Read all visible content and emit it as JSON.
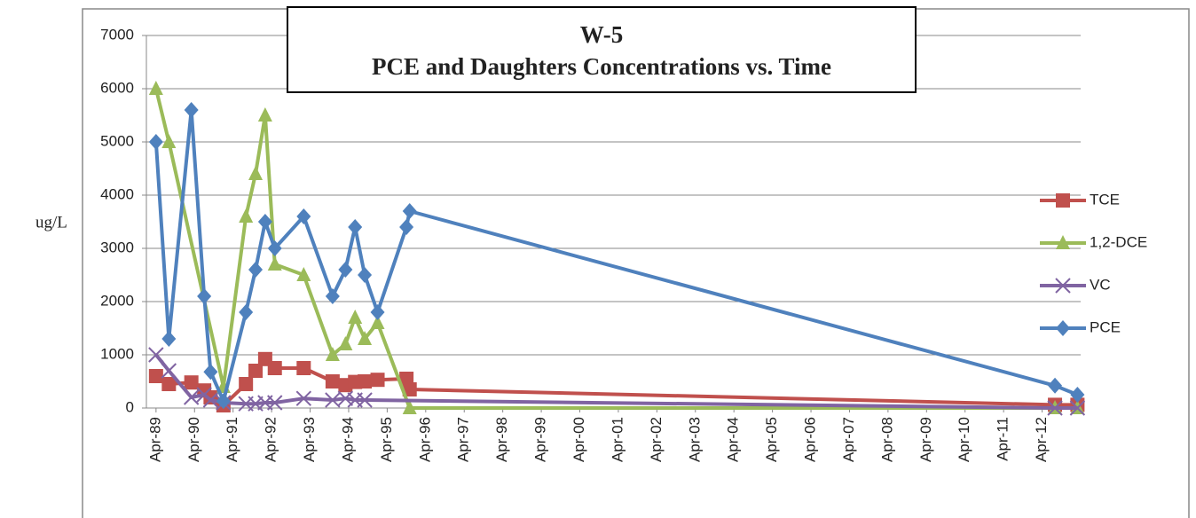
{
  "chart_data": {
    "type": "line",
    "title": "W-5",
    "subtitle": "PCE and Daughters Concentrations vs. Time",
    "y_label": "ug/L",
    "xlim": [
      "1989-01",
      "2013-04"
    ],
    "xticks": [
      {
        "value": "1989-04",
        "label": "Apr-89"
      },
      {
        "value": "1990-04",
        "label": "Apr-90"
      },
      {
        "value": "1991-04",
        "label": "Apr-91"
      },
      {
        "value": "1992-04",
        "label": "Apr-92"
      },
      {
        "value": "1993-04",
        "label": "Apr-93"
      },
      {
        "value": "1994-04",
        "label": "Apr-94"
      },
      {
        "value": "1995-04",
        "label": "Apr-95"
      },
      {
        "value": "1996-04",
        "label": "Apr-96"
      },
      {
        "value": "1997-04",
        "label": "Apr-97"
      },
      {
        "value": "1998-04",
        "label": "Apr-98"
      },
      {
        "value": "1999-04",
        "label": "Apr-99"
      },
      {
        "value": "2000-04",
        "label": "Apr-00"
      },
      {
        "value": "2001-04",
        "label": "Apr-01"
      },
      {
        "value": "2002-04",
        "label": "Apr-02"
      },
      {
        "value": "2003-04",
        "label": "Apr-03"
      },
      {
        "value": "2004-04",
        "label": "Apr-04"
      },
      {
        "value": "2005-04",
        "label": "Apr-05"
      },
      {
        "value": "2006-04",
        "label": "Apr-06"
      },
      {
        "value": "2007-04",
        "label": "Apr-07"
      },
      {
        "value": "2008-04",
        "label": "Apr-08"
      },
      {
        "value": "2009-04",
        "label": "Apr-09"
      },
      {
        "value": "2010-04",
        "label": "Apr-10"
      },
      {
        "value": "2011-04",
        "label": "Apr-11"
      },
      {
        "value": "2012-04",
        "label": "Apr-12"
      }
    ],
    "ylim": [
      0,
      7000
    ],
    "yticks": [
      0,
      1000,
      2000,
      3000,
      4000,
      5000,
      6000,
      7000
    ],
    "grid": true,
    "legend": "right",
    "series": [
      {
        "name": "TCE",
        "color": "#c0504d",
        "marker": "square",
        "x": [
          "1989-04",
          "1989-08",
          "1990-03",
          "1990-07",
          "1990-09",
          "1991-01",
          "1991-08",
          "1991-11",
          "1992-02",
          "1992-05",
          "1993-02",
          "1993-11",
          "1994-03",
          "1994-06",
          "1994-09",
          "1995-01",
          "1995-10",
          "1995-11",
          "2012-08",
          "2013-03"
        ],
        "values": [
          600,
          450,
          480,
          330,
          200,
          50,
          450,
          700,
          920,
          750,
          750,
          500,
          430,
          490,
          500,
          530,
          550,
          350,
          60,
          60
        ]
      },
      {
        "name": "1,2-DCE",
        "color": "#9bbb59",
        "marker": "triangle",
        "x": [
          "1989-04",
          "1989-08",
          "1991-01",
          "1991-08",
          "1991-11",
          "1992-02",
          "1992-05",
          "1993-02",
          "1993-11",
          "1994-03",
          "1994-06",
          "1994-09",
          "1995-01",
          "1995-11",
          "2012-08",
          "2013-03"
        ],
        "values": [
          6000,
          5000,
          400,
          3600,
          4400,
          5500,
          2700,
          2500,
          1000,
          1200,
          1700,
          1300,
          1600,
          0,
          0,
          0
        ]
      },
      {
        "name": "VC",
        "color": "#8064a2",
        "marker": "x",
        "x": [
          "1989-04",
          "1989-08",
          "1990-03",
          "1990-07",
          "1990-09",
          "1991-01",
          "1991-08",
          "1991-11",
          "1992-02",
          "1992-05",
          "1993-02",
          "1993-11",
          "1994-03",
          "1994-06",
          "1994-09",
          "2012-08",
          "2013-03"
        ],
        "values": [
          1000,
          700,
          200,
          250,
          150,
          100,
          80,
          80,
          100,
          100,
          180,
          150,
          180,
          150,
          150,
          0,
          0
        ]
      },
      {
        "name": "PCE",
        "color": "#4f81bd",
        "marker": "diamond",
        "x": [
          "1989-04",
          "1989-08",
          "1990-03",
          "1990-07",
          "1990-09",
          "1991-01",
          "1991-08",
          "1991-11",
          "1992-02",
          "1992-05",
          "1993-02",
          "1993-11",
          "1994-03",
          "1994-06",
          "1994-09",
          "1995-01",
          "1995-10",
          "1995-11",
          "2012-08",
          "2013-03"
        ],
        "values": [
          5000,
          1300,
          5600,
          2100,
          680,
          130,
          1800,
          2600,
          3500,
          3000,
          3600,
          2100,
          2600,
          3400,
          2500,
          1800,
          3400,
          3700,
          420,
          250
        ]
      }
    ]
  }
}
